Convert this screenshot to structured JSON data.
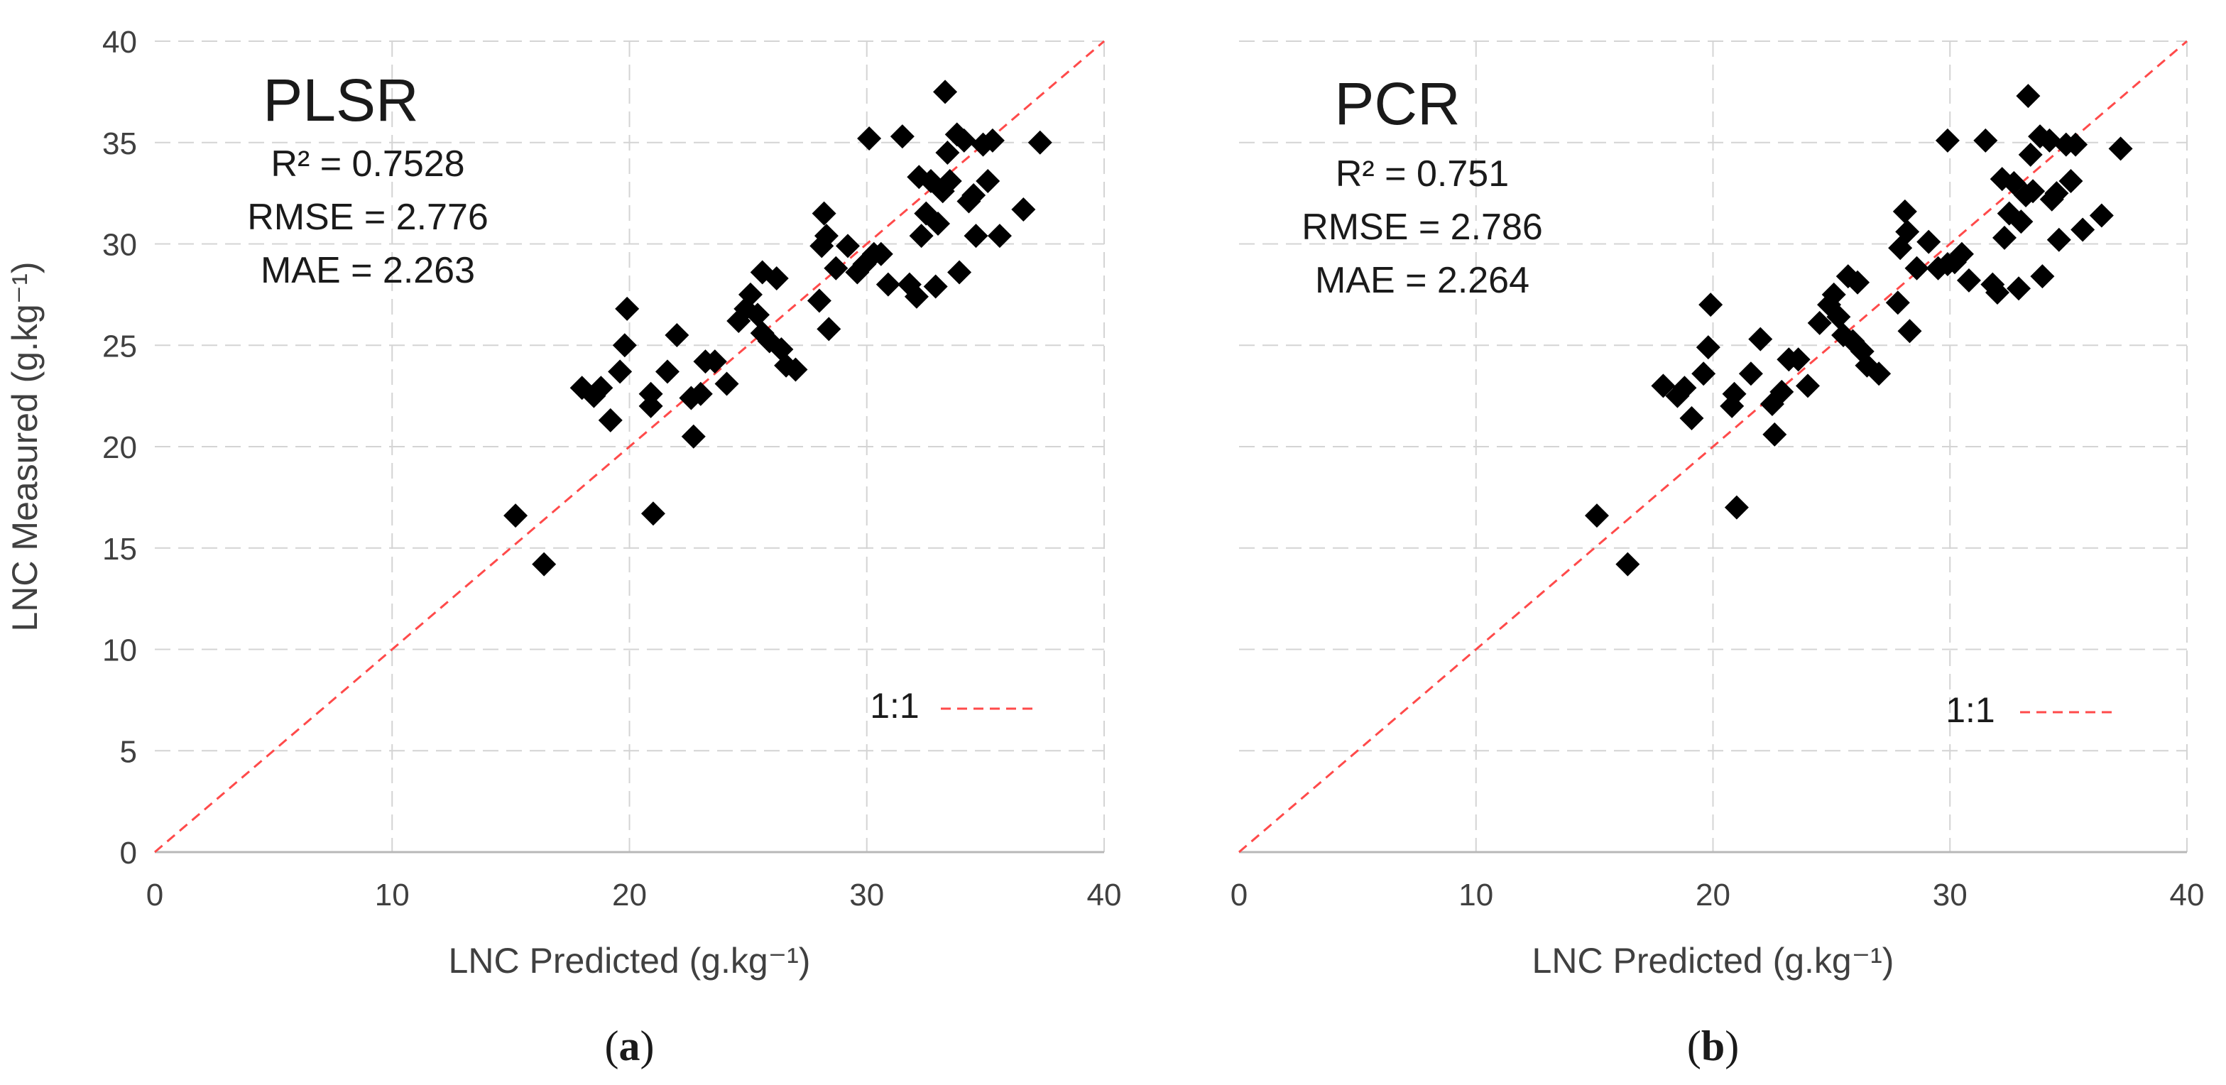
{
  "chart_data": [
    {
      "type": "scatter",
      "title": "PLSR",
      "panel_label": "a",
      "xlabel": "LNC Predicted (g.kg⁻¹)",
      "ylabel": "LNC Measured (g.kg⁻¹)",
      "xlim": [
        0,
        40
      ],
      "ylim": [
        0,
        40
      ],
      "xticks": [
        "0",
        "10",
        "20",
        "30",
        "40"
      ],
      "yticks": [
        "0",
        "5",
        "10",
        "15",
        "20",
        "25",
        "30",
        "35",
        "40"
      ],
      "grid": true,
      "stats": [
        "R² = 0.7528",
        "RMSE = 2.776",
        "MAE = 2.263"
      ],
      "legend": {
        "label": "1:1",
        "position": "bottom-right",
        "color": "#ff4a4a"
      },
      "marker_color": "#000000",
      "points": [
        [
          15.2,
          16.6
        ],
        [
          16.4,
          14.2
        ],
        [
          18.0,
          22.9
        ],
        [
          18.5,
          22.5
        ],
        [
          18.8,
          22.9
        ],
        [
          19.2,
          21.3
        ],
        [
          19.6,
          23.7
        ],
        [
          19.8,
          25.0
        ],
        [
          19.9,
          26.8
        ],
        [
          20.9,
          22.0
        ],
        [
          20.9,
          22.6
        ],
        [
          21.0,
          16.7
        ],
        [
          21.6,
          23.7
        ],
        [
          22.0,
          25.5
        ],
        [
          22.6,
          22.4
        ],
        [
          22.7,
          20.5
        ],
        [
          23.0,
          22.6
        ],
        [
          23.2,
          24.2
        ],
        [
          23.6,
          24.2
        ],
        [
          24.1,
          23.1
        ],
        [
          24.6,
          26.2
        ],
        [
          24.9,
          26.8
        ],
        [
          25.1,
          27.5
        ],
        [
          25.4,
          26.5
        ],
        [
          25.6,
          25.6
        ],
        [
          25.6,
          28.6
        ],
        [
          25.9,
          25.2
        ],
        [
          26.2,
          28.3
        ],
        [
          26.4,
          24.8
        ],
        [
          26.6,
          24.0
        ],
        [
          27.0,
          23.8
        ],
        [
          28.0,
          27.2
        ],
        [
          28.1,
          29.9
        ],
        [
          28.2,
          31.5
        ],
        [
          28.3,
          30.4
        ],
        [
          28.4,
          25.8
        ],
        [
          28.7,
          28.8
        ],
        [
          29.2,
          29.9
        ],
        [
          29.6,
          28.6
        ],
        [
          29.9,
          29.0
        ],
        [
          30.1,
          35.2
        ],
        [
          30.3,
          29.5
        ],
        [
          30.6,
          29.5
        ],
        [
          30.9,
          28.0
        ],
        [
          31.5,
          35.3
        ],
        [
          31.8,
          28.0
        ],
        [
          32.1,
          27.4
        ],
        [
          32.2,
          33.3
        ],
        [
          32.3,
          30.4
        ],
        [
          32.5,
          31.5
        ],
        [
          32.7,
          33.1
        ],
        [
          32.9,
          27.9
        ],
        [
          33.0,
          31.0
        ],
        [
          33.2,
          32.6
        ],
        [
          33.3,
          37.5
        ],
        [
          33.4,
          34.5
        ],
        [
          33.5,
          33.1
        ],
        [
          33.8,
          35.4
        ],
        [
          33.9,
          28.6
        ],
        [
          34.1,
          35.1
        ],
        [
          34.3,
          32.1
        ],
        [
          34.5,
          32.4
        ],
        [
          34.6,
          30.4
        ],
        [
          34.9,
          34.9
        ],
        [
          35.1,
          33.1
        ],
        [
          35.3,
          35.1
        ],
        [
          35.6,
          30.4
        ],
        [
          36.6,
          31.7
        ],
        [
          37.3,
          35.0
        ]
      ]
    },
    {
      "type": "scatter",
      "title": "PCR",
      "panel_label": "b",
      "xlabel": "LNC Predicted (g.kg⁻¹)",
      "ylabel": "",
      "xlim": [
        0,
        40
      ],
      "ylim": [
        0,
        40
      ],
      "xticks": [
        "0",
        "10",
        "20",
        "30",
        "40"
      ],
      "yticks": [],
      "grid": true,
      "stats": [
        "R² = 0.751",
        "RMSE = 2.786",
        "MAE = 2.264"
      ],
      "legend": {
        "label": "1:1",
        "position": "bottom-right",
        "color": "#ff4a4a"
      },
      "marker_color": "#000000",
      "points": [
        [
          15.1,
          16.6
        ],
        [
          16.4,
          14.2
        ],
        [
          17.9,
          23.0
        ],
        [
          18.5,
          22.5
        ],
        [
          18.8,
          22.9
        ],
        [
          19.1,
          21.4
        ],
        [
          19.6,
          23.6
        ],
        [
          19.8,
          24.9
        ],
        [
          19.9,
          27.0
        ],
        [
          20.8,
          22.0
        ],
        [
          20.9,
          22.6
        ],
        [
          21.0,
          17.0
        ],
        [
          21.6,
          23.6
        ],
        [
          22.0,
          25.3
        ],
        [
          22.5,
          22.1
        ],
        [
          22.6,
          20.6
        ],
        [
          22.9,
          22.7
        ],
        [
          23.2,
          24.3
        ],
        [
          23.6,
          24.3
        ],
        [
          24.0,
          23.0
        ],
        [
          24.5,
          26.1
        ],
        [
          24.9,
          27.0
        ],
        [
          25.1,
          27.5
        ],
        [
          25.3,
          26.4
        ],
        [
          25.5,
          25.5
        ],
        [
          25.7,
          28.4
        ],
        [
          25.9,
          25.2
        ],
        [
          26.1,
          28.1
        ],
        [
          26.3,
          24.7
        ],
        [
          26.5,
          24.0
        ],
        [
          27.0,
          23.6
        ],
        [
          27.8,
          27.1
        ],
        [
          27.9,
          29.8
        ],
        [
          28.1,
          31.6
        ],
        [
          28.2,
          30.6
        ],
        [
          28.3,
          25.7
        ],
        [
          28.6,
          28.8
        ],
        [
          29.1,
          30.1
        ],
        [
          29.5,
          28.8
        ],
        [
          29.9,
          29.0
        ],
        [
          29.9,
          35.1
        ],
        [
          30.2,
          29.1
        ],
        [
          30.5,
          29.5
        ],
        [
          30.8,
          28.2
        ],
        [
          31.5,
          35.1
        ],
        [
          31.8,
          28.0
        ],
        [
          32.0,
          27.6
        ],
        [
          32.2,
          33.2
        ],
        [
          32.3,
          30.3
        ],
        [
          32.5,
          31.5
        ],
        [
          32.7,
          33.0
        ],
        [
          32.9,
          27.8
        ],
        [
          33.0,
          31.1
        ],
        [
          33.2,
          32.4
        ],
        [
          33.3,
          37.3
        ],
        [
          33.4,
          34.4
        ],
        [
          33.5,
          32.6
        ],
        [
          33.8,
          35.3
        ],
        [
          33.9,
          28.4
        ],
        [
          34.2,
          35.1
        ],
        [
          34.3,
          32.2
        ],
        [
          34.5,
          32.5
        ],
        [
          34.6,
          30.2
        ],
        [
          34.9,
          34.9
        ],
        [
          35.1,
          33.1
        ],
        [
          35.3,
          34.9
        ],
        [
          35.6,
          30.7
        ],
        [
          36.4,
          31.4
        ],
        [
          37.2,
          34.7
        ]
      ]
    }
  ]
}
